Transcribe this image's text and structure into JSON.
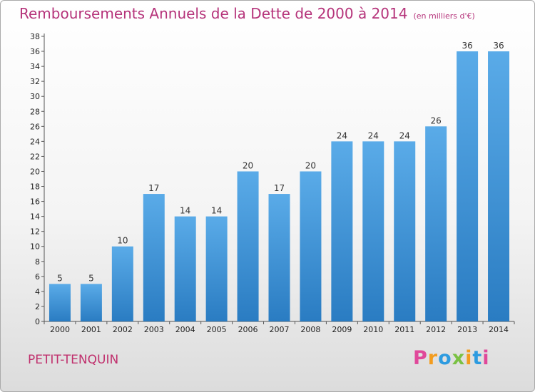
{
  "chart_data": {
    "type": "bar",
    "title": "Remboursements Annuels de la Dette de 2000 à 2014",
    "subtitle": "(en milliers d'€)",
    "categories": [
      "2000",
      "2001",
      "2002",
      "2003",
      "2004",
      "2005",
      "2006",
      "2007",
      "2008",
      "2009",
      "2010",
      "2011",
      "2012",
      "2013",
      "2014"
    ],
    "values": [
      5,
      5,
      10,
      17,
      14,
      14,
      20,
      17,
      20,
      24,
      24,
      24,
      26,
      36,
      36
    ],
    "ylim": [
      0,
      38
    ],
    "ytick_step": 2,
    "grid": false,
    "bar_color": "#3d92d8",
    "xlabel": "",
    "ylabel": ""
  },
  "footer": {
    "commune": "PETIT-TENQUIN",
    "logo": {
      "letters": [
        "P",
        "r",
        "o",
        "x",
        "i",
        "t",
        "i"
      ],
      "colors": [
        "#e0489a",
        "#f39c1e",
        "#2d9be0",
        "#7ac143",
        "#f39c1e",
        "#2d9be0",
        "#e0489a"
      ]
    }
  }
}
